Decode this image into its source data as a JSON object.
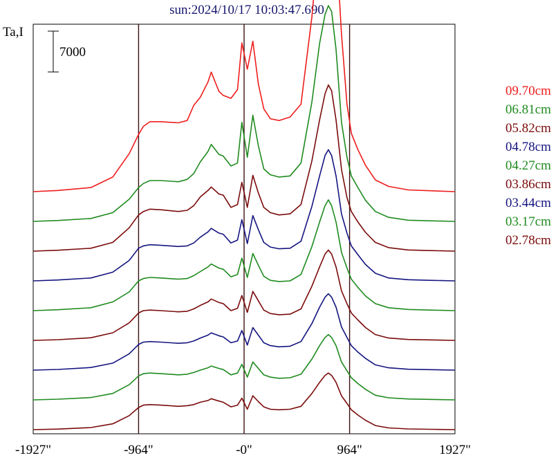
{
  "chart_data": {
    "type": "line",
    "title": "sun:2024/10/17 10:03:47.690",
    "ylabel": "Ta,I",
    "scale_bar_label": "7000",
    "x_ticks": [
      {
        "value": -1927,
        "label": "-1927\""
      },
      {
        "value": -964,
        "label": "-964\""
      },
      {
        "value": 0,
        "label": "-0\""
      },
      {
        "value": 964,
        "label": "964\""
      },
      {
        "value": 1927,
        "label": "1927\""
      }
    ],
    "xlim": [
      -1927,
      1927
    ],
    "vertical_guides": [
      -964,
      0,
      964
    ],
    "x": [
      -1927,
      -1700,
      -1400,
      -1200,
      -1050,
      -964,
      -920,
      -860,
      -760,
      -600,
      -520,
      -460,
      -400,
      -330,
      -300,
      -230,
      -190,
      -120,
      -60,
      -20,
      30,
      80,
      130,
      180,
      240,
      320,
      420,
      520,
      620,
      690,
      740,
      770,
      800,
      840,
      890,
      940,
      980,
      1040,
      1110,
      1200,
      1320,
      1500,
      1700,
      1927
    ],
    "series": [
      {
        "name": "09.70cm",
        "color": "#ee1c1c",
        "values": [
          0,
          200,
          700,
          2500,
          6500,
          9800,
          11200,
          12000,
          12000,
          11800,
          12200,
          14800,
          16200,
          18800,
          20500,
          17200,
          16500,
          16000,
          17500,
          25500,
          21000,
          25800,
          18500,
          14200,
          12500,
          12200,
          12800,
          15000,
          30000,
          44500,
          52000,
          54000,
          52500,
          43000,
          27000,
          15000,
          10000,
          7200,
          4500,
          2000,
          900,
          300,
          150,
          0
        ]
      },
      {
        "name": "06.81cm",
        "color": "#1e8a1e",
        "values": [
          0,
          150,
          500,
          1500,
          3800,
          5800,
          6500,
          7000,
          7000,
          6800,
          7200,
          8200,
          10200,
          12000,
          13200,
          11500,
          11200,
          9500,
          10000,
          17000,
          11000,
          18200,
          13000,
          9000,
          8000,
          7600,
          7800,
          10000,
          20500,
          30500,
          35500,
          37000,
          36000,
          29500,
          17000,
          11000,
          7800,
          5800,
          3600,
          1700,
          700,
          200,
          100,
          0
        ]
      },
      {
        "name": "05.82cm",
        "color": "#7a0a0a",
        "values": [
          0,
          150,
          500,
          1500,
          4000,
          6200,
          6800,
          7200,
          7100,
          6800,
          7000,
          7800,
          9300,
          10400,
          11000,
          9800,
          9600,
          7500,
          8000,
          11800,
          7500,
          13000,
          10000,
          7500,
          6600,
          6200,
          6400,
          8000,
          15500,
          22500,
          27000,
          28500,
          27500,
          22500,
          14000,
          9200,
          6800,
          5000,
          3200,
          1500,
          600,
          200,
          100,
          0
        ]
      },
      {
        "name": "04.78cm",
        "color": "#141480",
        "values": [
          0,
          150,
          500,
          1500,
          3500,
          5600,
          6000,
          6200,
          6100,
          5900,
          6000,
          6500,
          7500,
          8400,
          9000,
          8200,
          8000,
          6500,
          7000,
          10500,
          6400,
          11200,
          8800,
          6600,
          5800,
          5500,
          5600,
          6800,
          12800,
          18000,
          21500,
          22500,
          21500,
          18000,
          11500,
          8200,
          6000,
          4500,
          2800,
          1300,
          500,
          200,
          100,
          0
        ]
      },
      {
        "name": "04.27cm",
        "color": "#1e8a1e",
        "values": [
          0,
          150,
          500,
          1500,
          3200,
          5100,
          5500,
          5700,
          5600,
          5400,
          5500,
          6000,
          6700,
          7500,
          8000,
          7300,
          7100,
          5800,
          6200,
          9000,
          5700,
          9800,
          7800,
          5900,
          5200,
          5000,
          5100,
          6200,
          11000,
          15200,
          18000,
          19000,
          18000,
          15200,
          10000,
          7300,
          5400,
          4000,
          2500,
          1200,
          500,
          200,
          100,
          0
        ]
      },
      {
        "name": "03.86cm",
        "color": "#7a0a0a",
        "values": [
          0,
          120,
          450,
          1300,
          3000,
          4700,
          5100,
          5200,
          5100,
          4900,
          5000,
          5400,
          6000,
          6600,
          7100,
          6500,
          6300,
          5100,
          5500,
          7700,
          4800,
          8400,
          6800,
          5200,
          4600,
          4400,
          4500,
          5400,
          9300,
          12600,
          14800,
          15500,
          14800,
          12600,
          8500,
          6300,
          4700,
          3500,
          2200,
          1000,
          400,
          150,
          80,
          0
        ]
      },
      {
        "name": "03.44cm",
        "color": "#141480",
        "values": [
          0,
          120,
          450,
          1200,
          2800,
          4400,
          4800,
          4900,
          4800,
          4600,
          4700,
          5000,
          5500,
          6000,
          6400,
          5900,
          5700,
          4700,
          5000,
          6800,
          4300,
          7300,
          6000,
          4700,
          4200,
          4000,
          4100,
          4900,
          8000,
          10800,
          12500,
          13100,
          12500,
          10800,
          7400,
          5600,
          4200,
          3100,
          2000,
          900,
          400,
          150,
          80,
          0
        ]
      },
      {
        "name": "03.17cm",
        "color": "#1e8a1e",
        "values": [
          0,
          120,
          400,
          1100,
          2600,
          4100,
          4500,
          4600,
          4500,
          4300,
          4400,
          4700,
          5100,
          5500,
          5800,
          5400,
          5200,
          4300,
          4600,
          6100,
          3900,
          6500,
          5400,
          4300,
          3900,
          3700,
          3800,
          4400,
          7000,
          9300,
          10700,
          11200,
          10700,
          9300,
          6500,
          5000,
          3800,
          2800,
          1800,
          800,
          350,
          150,
          80,
          0
        ]
      },
      {
        "name": "02.78cm",
        "color": "#7a0a0a",
        "values": [
          0,
          100,
          350,
          1000,
          2400,
          3800,
          4200,
          4300,
          4200,
          4000,
          4100,
          4300,
          4700,
          5000,
          5300,
          4900,
          4700,
          3900,
          4200,
          5400,
          3500,
          5800,
          4800,
          3900,
          3500,
          3400,
          3500,
          4000,
          6200,
          8100,
          9300,
          9700,
          9300,
          8100,
          5800,
          4500,
          3400,
          2500,
          1600,
          700,
          300,
          120,
          60,
          0
        ]
      }
    ]
  }
}
